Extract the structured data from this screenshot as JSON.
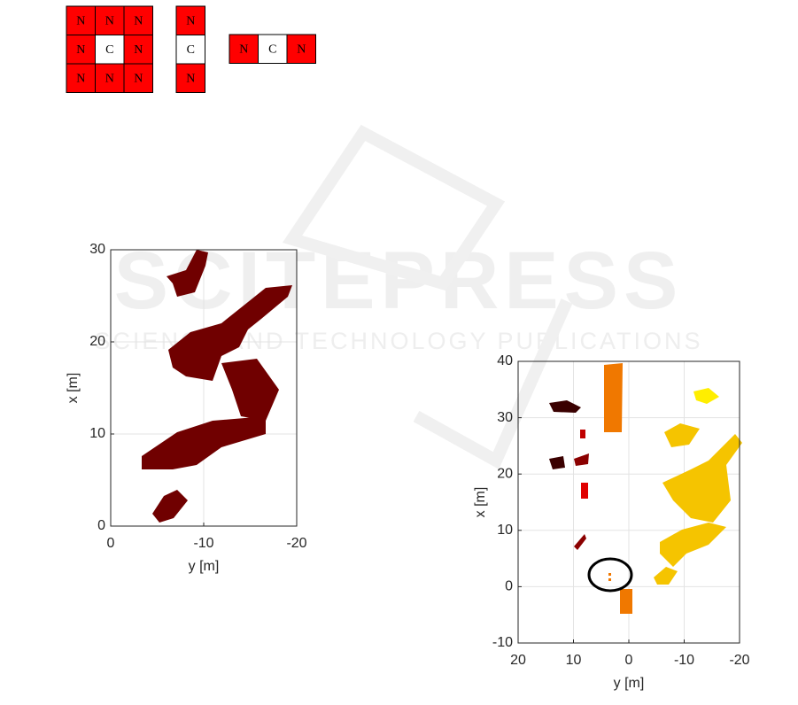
{
  "grids": [
    {
      "cells": [
        [
          "N",
          "N",
          "N"
        ],
        [
          "N",
          "C",
          "N"
        ],
        [
          "N",
          "N",
          "N"
        ]
      ]
    },
    {
      "cells": [
        [
          "N"
        ],
        [
          "C"
        ],
        [
          "N"
        ]
      ]
    },
    {
      "cells": [
        [
          "N",
          "C",
          "N"
        ]
      ]
    }
  ],
  "watermark": {
    "title": "SCITEPRESS",
    "subtitle": "SCIENCE AND TECHNOLOGY PUBLICATIONS"
  },
  "plots": [
    {
      "xlabel": "y [m]",
      "ylabel": "x [m]",
      "xlim": [
        0,
        -20
      ],
      "xticks": [
        0,
        -10,
        -20
      ],
      "ylim": [
        0,
        30
      ],
      "yticks": [
        0,
        10,
        20,
        30
      ],
      "grid": true
    },
    {
      "xlabel": "y [m]",
      "ylabel": "x [m]",
      "xlim": [
        20,
        -20
      ],
      "xticks": [
        20,
        10,
        0,
        -10,
        -20
      ],
      "ylim": [
        -10,
        40
      ],
      "yticks": [
        -10,
        0,
        10,
        20,
        30,
        40
      ],
      "grid": true
    }
  ]
}
